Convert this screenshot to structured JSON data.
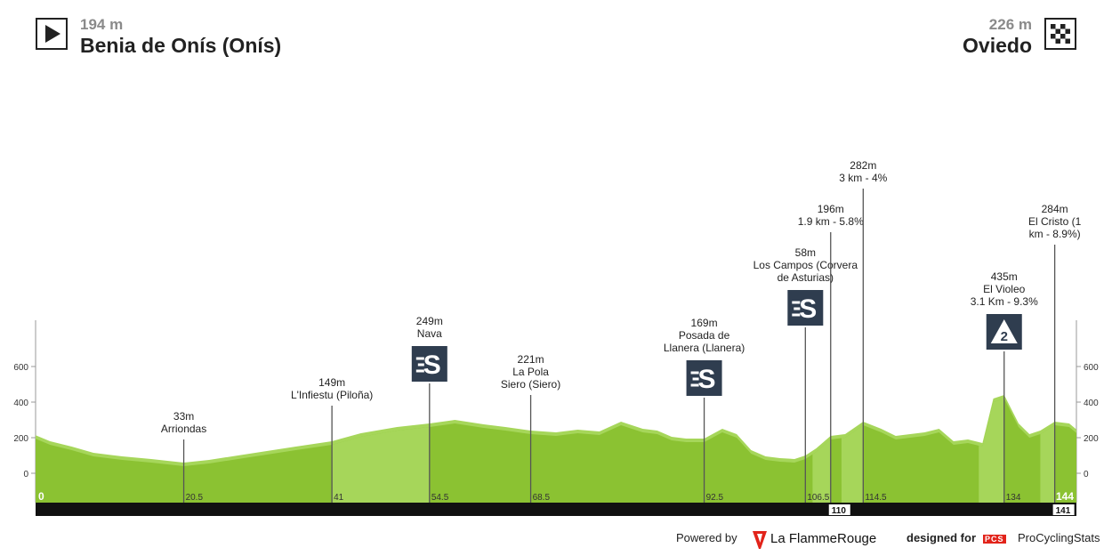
{
  "header": {
    "start": {
      "altitude": "194 m",
      "name": "Benia de Onís (Onís)",
      "icon": "play-start-icon"
    },
    "finish": {
      "altitude": "226 m",
      "name": "Oviedo",
      "icon": "checkered-flag-icon"
    }
  },
  "colors": {
    "profile_light": "#a6d65a",
    "profile_dark": "#8bc232",
    "bar": "#111111",
    "marker_line": "#666666",
    "axis": "#999999"
  },
  "chart_data": {
    "type": "area",
    "title": "",
    "xlabel": "",
    "ylabel": "",
    "xlim": [
      0,
      144
    ],
    "ylim": [
      -120,
      850
    ],
    "y_ticks": [
      0,
      200,
      400,
      600
    ],
    "km_ticks": [
      {
        "x": 0,
        "label": "0"
      },
      {
        "x": 20.5,
        "label": "20.5"
      },
      {
        "x": 41,
        "label": "41"
      },
      {
        "x": 54.5,
        "label": "54.5"
      },
      {
        "x": 68.5,
        "label": "68.5"
      },
      {
        "x": 92.5,
        "label": "92.5"
      },
      {
        "x": 106.5,
        "label": "106.5"
      },
      {
        "x": 114.5,
        "label": "114.5"
      },
      {
        "x": 134,
        "label": "134"
      },
      {
        "x": 144,
        "label": "144"
      }
    ],
    "bar_ticks": [
      {
        "x": 110,
        "label": "110"
      },
      {
        "x": 141,
        "label": "141"
      }
    ],
    "profile": {
      "x": [
        0,
        2,
        5,
        8,
        12,
        16,
        20.5,
        24,
        28,
        32,
        36,
        41,
        45,
        50,
        54.5,
        58,
        62,
        65,
        68.5,
        72,
        75,
        78,
        81,
        84,
        86,
        88,
        90,
        92.5,
        95,
        97,
        99,
        101,
        103,
        105,
        106.5,
        108,
        110,
        112,
        114.5,
        117,
        119,
        121,
        123,
        125,
        127,
        129,
        131,
        132.5,
        134,
        136,
        137.5,
        139,
        141,
        143,
        144
      ],
      "y": [
        194,
        160,
        130,
        95,
        75,
        60,
        40,
        55,
        80,
        105,
        130,
        160,
        205,
        240,
        260,
        280,
        255,
        240,
        220,
        210,
        225,
        215,
        270,
        230,
        220,
        185,
        175,
        175,
        230,
        200,
        110,
        75,
        65,
        60,
        80,
        120,
        190,
        200,
        270,
        230,
        190,
        200,
        210,
        230,
        160,
        170,
        150,
        400,
        420,
        260,
        200,
        220,
        270,
        260,
        226
      ]
    },
    "climb_segments": [
      {
        "x": [
          41,
          54.5
        ],
        "label": "climb-nava"
      },
      {
        "x": [
          107.5,
          110
        ],
        "label": "climb-los-campos"
      },
      {
        "x": [
          111.5,
          114.5
        ],
        "label": "climb-282"
      },
      {
        "x": [
          130.5,
          134
        ],
        "label": "climb-el-violeo"
      },
      {
        "x": [
          139,
          141
        ],
        "label": "climb-el-cristo"
      }
    ],
    "markers": [
      {
        "id": "arriondas",
        "x": 20.5,
        "lines": [
          "33m",
          "Arriondas"
        ],
        "badge": null
      },
      {
        "id": "linfiestu",
        "x": 41,
        "lines": [
          "149m",
          "L'Infiestu (Piloña)"
        ],
        "badge": null
      },
      {
        "id": "nava",
        "x": 54.5,
        "lines": [
          "249m",
          "Nava"
        ],
        "badge": "sprint"
      },
      {
        "id": "la-pola-siero",
        "x": 68.5,
        "lines": [
          "221m",
          "La Pola",
          "Siero (Siero)"
        ],
        "badge": null
      },
      {
        "id": "posada-de-llanera",
        "x": 92.5,
        "lines": [
          "169m",
          "Posada de",
          "Llanera (Llanera)"
        ],
        "badge": "sprint"
      },
      {
        "id": "los-campos",
        "x": 106.5,
        "lines": [
          "58m",
          "Los Campos (Corvera",
          "de Asturias)"
        ],
        "badge": "sprint"
      },
      {
        "id": "climb-196m",
        "x": 110,
        "lines": [
          "196m",
          "1.9 km - 5.8%"
        ],
        "badge": null
      },
      {
        "id": "climb-282m",
        "x": 114.5,
        "lines": [
          "282m",
          "3 km - 4%"
        ],
        "badge": null
      },
      {
        "id": "el-violeo",
        "x": 134,
        "lines": [
          "435m",
          "El Violeo",
          "3.1 Km - 9.3%"
        ],
        "badge": "cat2"
      },
      {
        "id": "el-cristo",
        "x": 141,
        "lines": [
          "284m",
          "El Cristo (1",
          "km - 8.9%)"
        ],
        "badge": null
      }
    ]
  },
  "footer": {
    "powered_by": "Powered by",
    "flamme_rouge": "La FlammeRouge",
    "designed_for": "designed for",
    "pcs_badge": "PCS",
    "procyclingstats": "ProCyclingStats"
  }
}
